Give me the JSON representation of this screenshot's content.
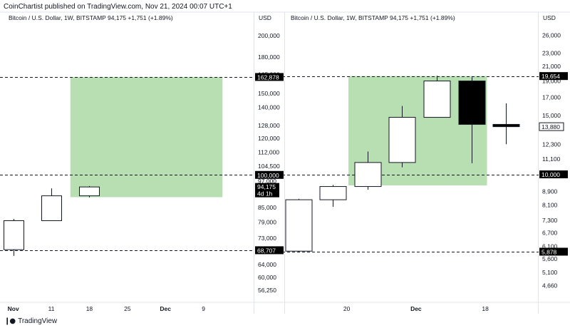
{
  "header": {
    "published": "CoinChartist published on TradingView.com, Nov 21, 2024 00:07 UTC+1"
  },
  "footer": {
    "brand": "TradingView",
    "logo_icon": "tradingview-logo-icon"
  },
  "colors": {
    "zone": "#b7dfb2",
    "axis_text": "#131722",
    "label_bg": "#000000",
    "label_fg": "#ffffff"
  },
  "chart_data": [
    {
      "type": "candlestick",
      "symbol": "Bitcoin / U.S. Dollar, 1W, BITSTAMP  94,175  +1,751 (+1.89%)",
      "currency": "USD",
      "y_scale": "log",
      "ylim": [
        53000,
        225000
      ],
      "y_ticks": [
        200000,
        180000,
        165000,
        150000,
        140000,
        128000,
        120000,
        112000,
        104500,
        97000,
        85000,
        79000,
        73000,
        64000,
        60000,
        56250
      ],
      "y_tick_labels": [
        "200,000",
        "180,000",
        "165,000",
        "150,000",
        "140,000",
        "128,000",
        "120,000",
        "112,000",
        "104,500",
        "97,000",
        "85,000",
        "79,000",
        "73,000",
        "64,000",
        "60,000",
        "56,250"
      ],
      "x_labels": [
        "Nov",
        "11",
        "18",
        "25",
        "Dec",
        "9"
      ],
      "x_label_bold": [
        "Nov",
        "Dec"
      ],
      "x_range": [
        -0.2,
        6.3
      ],
      "candles": [
        {
          "x": 0,
          "open": 68900,
          "high": 80300,
          "low": 66800,
          "close": 79600
        },
        {
          "x": 1,
          "open": 79600,
          "high": 93500,
          "low": 79600,
          "close": 90100
        },
        {
          "x": 2,
          "open": 90100,
          "high": 94600,
          "low": 89400,
          "close": 94175
        }
      ],
      "zone": {
        "x0": 1.5,
        "x1": 5.5,
        "bottom": 89500,
        "top": 162878
      },
      "dashed_levels": [
        162878,
        100000,
        68707
      ],
      "price_labels": [
        {
          "value": 162878,
          "text": "162,878"
        },
        {
          "value": 100000,
          "text": "100,000"
        },
        {
          "value": 68707,
          "text": "68,707"
        }
      ],
      "last_price": {
        "value": 94175,
        "text": "94,175",
        "sub": "4d 1h"
      }
    },
    {
      "type": "candlestick",
      "symbol": "Bitcoin / U.S. Dollar, 1W, BITSTAMP  94,175  +1,751 (+1.89%)",
      "currency": "USD",
      "y_scale": "log",
      "ylim": [
        4150,
        30500
      ],
      "y_ticks": [
        26000,
        23000,
        21000,
        19000,
        17000,
        15000,
        12300,
        11100,
        8900,
        8100,
        7300,
        6700,
        6100,
        5600,
        5100,
        4660
      ],
      "y_tick_labels": [
        "26,000",
        "23,000",
        "21,000",
        "19,000",
        "17,000",
        "15,000",
        "12,300",
        "11,100",
        "8,900",
        "8,100",
        "7,300",
        "6,700",
        "6,100",
        "5,600",
        "5,100",
        "4,660"
      ],
      "x_labels": [
        "20",
        "Dec",
        "18"
      ],
      "x_label_bold": [
        "Dec"
      ],
      "x_label_positions": [
        1.4,
        3.4,
        5.4
      ],
      "x_range": [
        -0.3,
        6.9
      ],
      "candles": [
        {
          "x": 0,
          "open": 5900,
          "high": 8450,
          "low": 5878,
          "close": 8400
        },
        {
          "x": 1,
          "open": 8400,
          "high": 9300,
          "low": 8000,
          "close": 9200
        },
        {
          "x": 2,
          "open": 9200,
          "high": 11700,
          "low": 9000,
          "close": 10850
        },
        {
          "x": 3,
          "open": 10850,
          "high": 16000,
          "low": 10500,
          "close": 14800
        },
        {
          "x": 4,
          "open": 14800,
          "high": 19700,
          "low": 14800,
          "close": 19000
        },
        {
          "x": 5,
          "open": 19000,
          "high": 19500,
          "low": 10800,
          "close": 14100
        },
        {
          "x": 6,
          "open": 14100,
          "high": 16300,
          "low": 12300,
          "close": 13880
        }
      ],
      "zone": {
        "x0": 1.45,
        "x1": 5.45,
        "bottom": 9270,
        "top": 19654
      },
      "dashed_levels": [
        19654,
        10000,
        5878
      ],
      "price_labels": [
        {
          "value": 19654,
          "text": "19,654"
        },
        {
          "value": 10000,
          "text": "10,000"
        },
        {
          "value": 5878,
          "text": "5,878"
        }
      ],
      "last_price": {
        "value": 13880,
        "text": "13,880",
        "outlined": true
      }
    }
  ]
}
